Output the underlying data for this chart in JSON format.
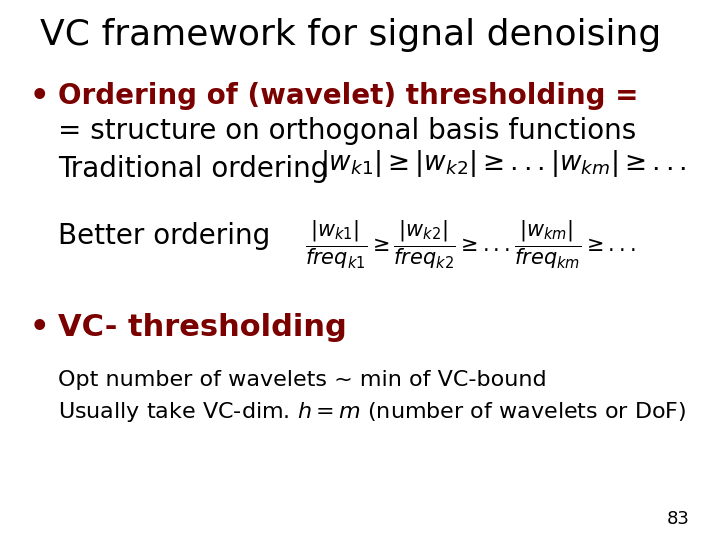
{
  "background_color": "#ffffff",
  "title": "VC framework for signal denoising",
  "title_fontsize": 26,
  "title_color": "#000000",
  "bullet_color": "#7b0000",
  "bullet1_text": "Ordering of (wavelet) thresholding =",
  "bullet1_line2": "= structure on orthogonal basis functions",
  "bullet1_line3": "Traditional ordering",
  "bullet2_text": "VC- thresholding",
  "opt_line1": "Opt number of wavelets ~ min of VC-bound",
  "better_ordering_label": "Better ordering",
  "page_number": "83",
  "bullet_fontsize": 20,
  "body_fontsize": 20,
  "small_fontsize": 16
}
